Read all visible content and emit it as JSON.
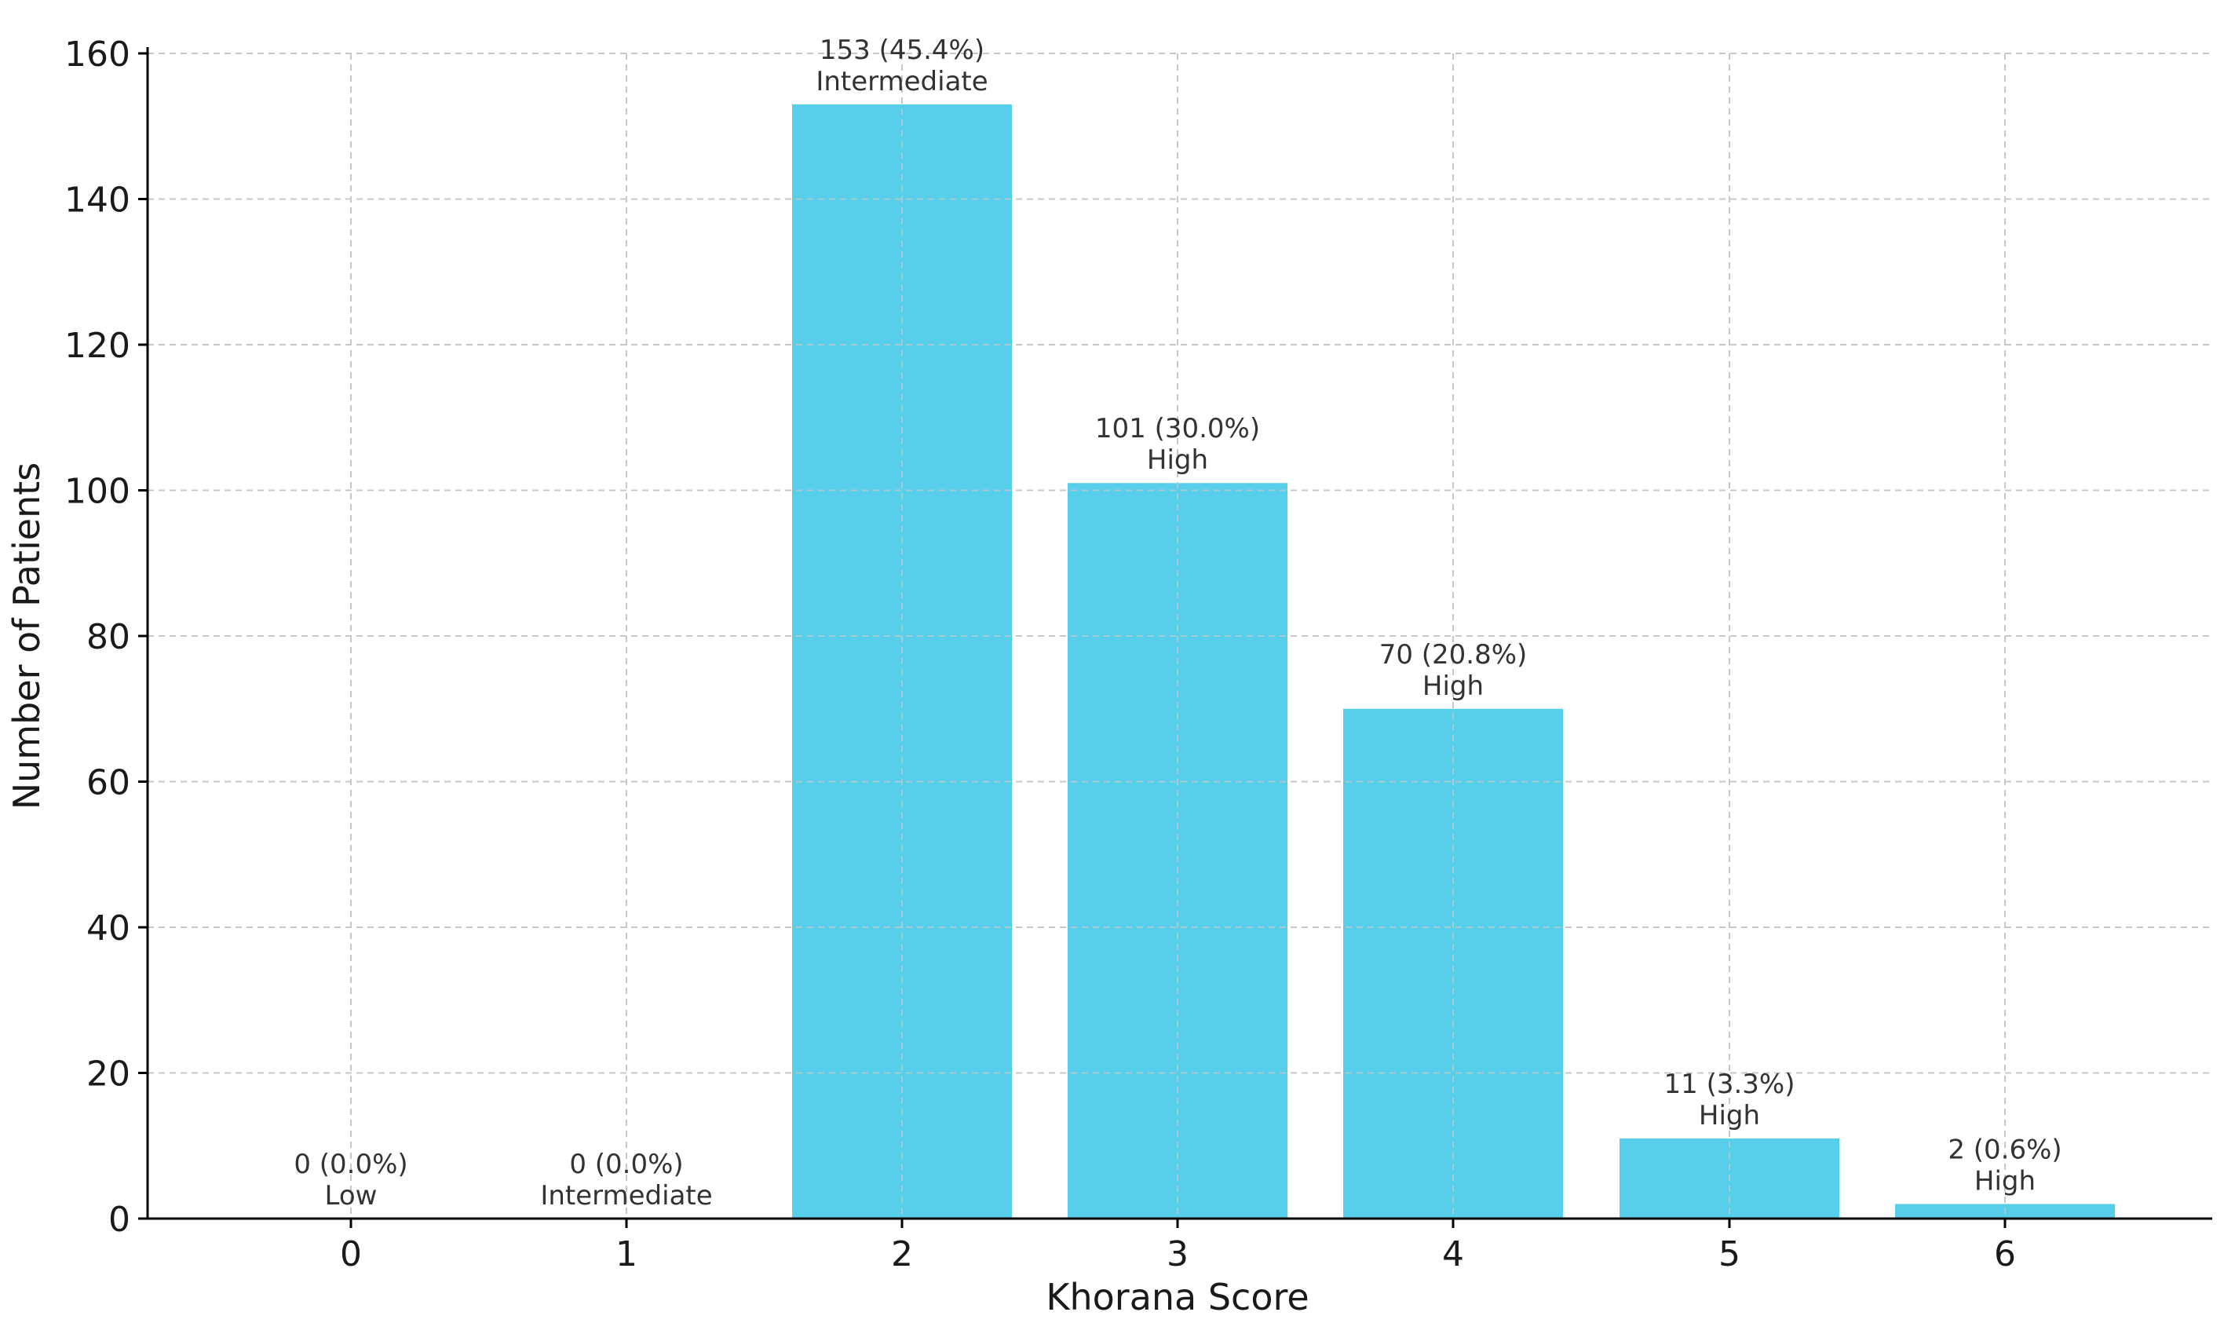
{
  "chart_data": {
    "type": "bar",
    "title": "",
    "xlabel": "Khorana Score",
    "ylabel": "Number of Patients",
    "categories": [
      "0",
      "1",
      "2",
      "3",
      "4",
      "5",
      "6"
    ],
    "values": [
      0,
      0,
      153,
      101,
      70,
      11,
      2
    ],
    "percent_labels": [
      "0 (0.0%)",
      "0 (0.0%)",
      "153 (45.4%)",
      "101 (30.0%)",
      "70 (20.8%)",
      "11 (3.3%)",
      "2 (0.6%)"
    ],
    "risk_labels": [
      "Low",
      "Intermediate",
      "Intermediate",
      "High",
      "High",
      "High",
      "High"
    ],
    "ylim": [
      0,
      160
    ],
    "yticks": [
      0,
      20,
      40,
      60,
      80,
      100,
      120,
      140,
      160
    ],
    "grid": true,
    "bar_color": "#57cfeb",
    "grid_color": "#c8c8c8",
    "axis_color": "#000000"
  }
}
